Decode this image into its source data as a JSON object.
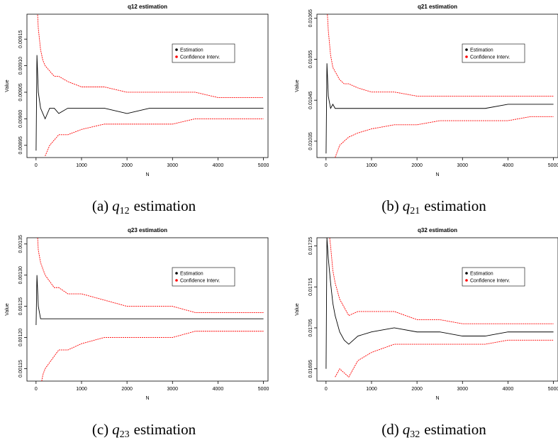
{
  "chart_data": [
    {
      "type": "line",
      "title": "q12 estimation",
      "xlabel": "N",
      "ylabel": "Value",
      "caption": {
        "label": "(a)",
        "symbol": "q",
        "subscript": "12",
        "text": "estimation"
      },
      "x": [
        1,
        20,
        50,
        100,
        150,
        200,
        300,
        400,
        500,
        700,
        1000,
        1500,
        2000,
        2500,
        3000,
        3500,
        4000,
        4500,
        5000
      ],
      "xlim": [
        -200,
        5100
      ],
      "xticks": [
        0,
        1000,
        2000,
        3000,
        4000,
        5000
      ],
      "ylim": [
        0.008927,
        0.009197
      ],
      "yticks": [
        0.00895,
        {
          "value": 0.009,
          "label": "0.00900"
        },
        0.00905,
        {
          "value": 0.0091,
          "label": "0.00910"
        },
        0.00915
      ],
      "series": [
        {
          "name": "Estimation",
          "color": "#000000",
          "values": [
            0.00894,
            0.00912,
            0.00905,
            0.00902,
            0.00901,
            0.009,
            0.00902,
            0.00902,
            0.00901,
            0.00902,
            0.00902,
            0.00902,
            0.00901,
            0.00902,
            0.00902,
            0.00902,
            0.00902,
            0.00902,
            0.00902
          ]
        },
        {
          "name": "Confidence Interv.",
          "color": "#ff0000",
          "values": [
            null,
            0.00922,
            0.00917,
            0.00913,
            0.00911,
            0.0091,
            0.00909,
            0.00908,
            0.00908,
            0.00907,
            0.00906,
            0.00906,
            0.00905,
            0.00905,
            0.00905,
            0.00905,
            0.00904,
            0.00904,
            0.00904
          ],
          "lower": [
            null,
            null,
            null,
            null,
            null,
            0.00893,
            0.00895,
            0.00896,
            0.00897,
            0.00897,
            0.00898,
            0.00899,
            0.00899,
            0.00899,
            0.00899,
            0.009,
            0.009,
            0.009,
            0.009
          ]
        }
      ]
    },
    {
      "type": "line",
      "title": "q21 estimation",
      "xlabel": "N",
      "ylabel": "Value",
      "caption": {
        "label": "(b)",
        "symbol": "q",
        "subscript": "21",
        "text": "estimation"
      },
      "x": [
        1,
        20,
        50,
        100,
        150,
        200,
        300,
        400,
        500,
        700,
        1000,
        1500,
        2000,
        2500,
        3000,
        3500,
        4000,
        4500,
        5000
      ],
      "xlim": [
        -200,
        5100
      ],
      "xticks": [
        0,
        1000,
        2000,
        3000,
        4000,
        5000
      ],
      "ylim": [
        0.01031,
        0.01066
      ],
      "yticks": [
        0.01035,
        0.01045,
        0.01055,
        0.01065
      ],
      "series": [
        {
          "name": "Estimation",
          "color": "#000000",
          "values": [
            0.01032,
            0.01054,
            0.01046,
            0.01043,
            0.01044,
            0.01043,
            0.01043,
            0.01043,
            0.01043,
            0.01043,
            0.01043,
            0.01043,
            0.01043,
            0.01043,
            0.01043,
            0.01043,
            0.01044,
            0.01044,
            0.01044
          ]
        },
        {
          "name": "Confidence Interv.",
          "color": "#ff0000",
          "values": [
            null,
            0.01068,
            0.01062,
            0.01056,
            0.01053,
            0.01052,
            0.0105,
            0.01049,
            0.01049,
            0.01048,
            0.01047,
            0.01047,
            0.01046,
            0.01046,
            0.01046,
            0.01046,
            0.01046,
            0.01046,
            0.01046
          ],
          "lower": [
            null,
            null,
            null,
            null,
            null,
            0.01031,
            0.01034,
            0.01035,
            0.01036,
            0.01037,
            0.01038,
            0.01039,
            0.01039,
            0.0104,
            0.0104,
            0.0104,
            0.0104,
            0.01041,
            0.01041
          ]
        }
      ]
    },
    {
      "type": "line",
      "title": "q23 estimation",
      "xlabel": "N",
      "ylabel": "Value",
      "caption": {
        "label": "(c)",
        "symbol": "q",
        "subscript": "23",
        "text": "estimation"
      },
      "x": [
        1,
        20,
        50,
        100,
        150,
        200,
        300,
        400,
        500,
        700,
        1000,
        1500,
        2000,
        2500,
        3000,
        3500,
        4000,
        4500,
        5000
      ],
      "xlim": [
        -200,
        5100
      ],
      "xticks": [
        0,
        1000,
        2000,
        3000,
        4000,
        5000
      ],
      "ylim": [
        0.00113,
        0.00136
      ],
      "yticks": [
        0.00115,
        {
          "value": 0.0012,
          "label": "0.00120"
        },
        0.00125,
        {
          "value": 0.0013,
          "label": "0.00130"
        },
        0.00135
      ],
      "series": [
        {
          "name": "Estimation",
          "color": "#000000",
          "values": [
            0.00122,
            0.0013,
            0.00125,
            0.00123,
            0.00123,
            0.00123,
            0.00123,
            0.00123,
            0.00123,
            0.00123,
            0.00123,
            0.00123,
            0.00123,
            0.00123,
            0.00123,
            0.00123,
            0.00123,
            0.00123,
            0.00123
          ]
        },
        {
          "name": "Confidence Interv.",
          "color": "#ff0000",
          "values": [
            null,
            0.00138,
            0.00134,
            0.00132,
            0.00131,
            0.0013,
            0.00129,
            0.00128,
            0.00128,
            0.00127,
            0.00127,
            0.00126,
            0.00125,
            0.00125,
            0.00125,
            0.00124,
            0.00124,
            0.00124,
            0.00124
          ],
          "lower": [
            null,
            null,
            null,
            0.00112,
            0.00114,
            0.00115,
            0.00116,
            0.00117,
            0.00118,
            0.00118,
            0.00119,
            0.0012,
            0.0012,
            0.0012,
            0.0012,
            0.00121,
            0.00121,
            0.00121,
            0.00121
          ]
        }
      ]
    },
    {
      "type": "line",
      "title": "q32 estimation",
      "xlabel": "N",
      "ylabel": "Value",
      "caption": {
        "label": "(d)",
        "symbol": "q",
        "subscript": "32",
        "text": "estimation"
      },
      "x": [
        1,
        20,
        50,
        100,
        150,
        200,
        300,
        400,
        500,
        700,
        1000,
        1500,
        2000,
        2500,
        3000,
        3500,
        4000,
        4500,
        5000
      ],
      "xlim": [
        -200,
        5100
      ],
      "xticks": [
        0,
        1000,
        2000,
        3000,
        4000,
        5000
      ],
      "ylim": [
        0.01692,
        0.01727
      ],
      "yticks": [
        0.01695,
        0.01705,
        0.01715,
        0.01725
      ],
      "series": [
        {
          "name": "Estimation",
          "color": "#000000",
          "values": [
            0.01695,
            0.01727,
            0.01722,
            0.01716,
            0.01711,
            0.01708,
            0.01704,
            0.01702,
            0.01701,
            0.01703,
            0.01704,
            0.01705,
            0.01704,
            0.01704,
            0.01703,
            0.01703,
            0.01704,
            0.01704,
            0.01704
          ]
        },
        {
          "name": "Confidence Interv.",
          "color": "#ff0000",
          "values": [
            null,
            null,
            0.0173,
            0.01725,
            0.01719,
            0.01716,
            0.01712,
            0.0171,
            0.01708,
            0.01709,
            0.01709,
            0.01709,
            0.01707,
            0.01707,
            0.01706,
            0.01706,
            0.01706,
            0.01706,
            0.01706
          ],
          "lower": [
            null,
            null,
            null,
            null,
            null,
            0.01693,
            0.01695,
            0.01694,
            0.01693,
            0.01697,
            0.01699,
            0.01701,
            0.01701,
            0.01701,
            0.01701,
            0.01701,
            0.01702,
            0.01702,
            0.01702
          ]
        }
      ]
    }
  ]
}
